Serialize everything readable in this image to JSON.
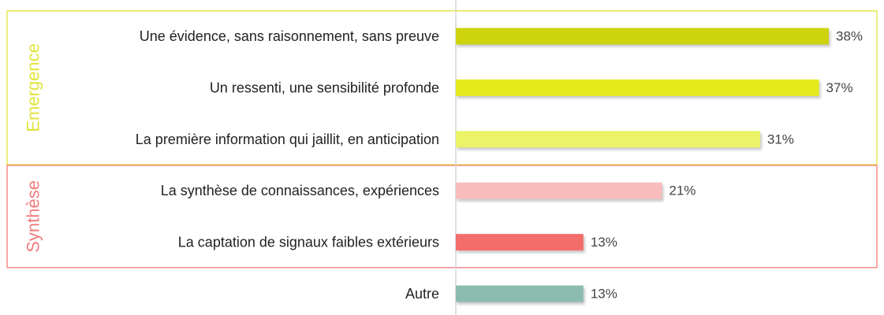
{
  "chart_data": {
    "type": "bar",
    "orientation": "horizontal",
    "title": "",
    "xlabel": "",
    "ylabel": "",
    "xlim": [
      0,
      100
    ],
    "value_suffix": "%",
    "grid": false,
    "categories": [
      "Une évidence, sans raisonnement, sans preuve",
      "Un ressenti, une sensibilité profonde",
      "La première information qui jaillit, en anticipation",
      "La synthèse de connaissances, expériences",
      "La captation de signaux faibles extérieurs",
      "Autre"
    ],
    "values": [
      38,
      37,
      31,
      21,
      13,
      13
    ],
    "value_labels": [
      "38%",
      "37%",
      "31%",
      "21%",
      "13%",
      "13%"
    ],
    "bar_colors": [
      "#cdd30f",
      "#e4ea1a",
      "#eaf466",
      "#f8bcbd",
      "#f36d6a",
      "#8bbcaf"
    ],
    "groups": [
      {
        "label": "Emergence",
        "color": "#e2e43a",
        "categories": [
          0,
          1,
          2
        ]
      },
      {
        "label": "Synthèse",
        "color": "#f27b7d",
        "categories": [
          3,
          4
        ]
      }
    ]
  }
}
